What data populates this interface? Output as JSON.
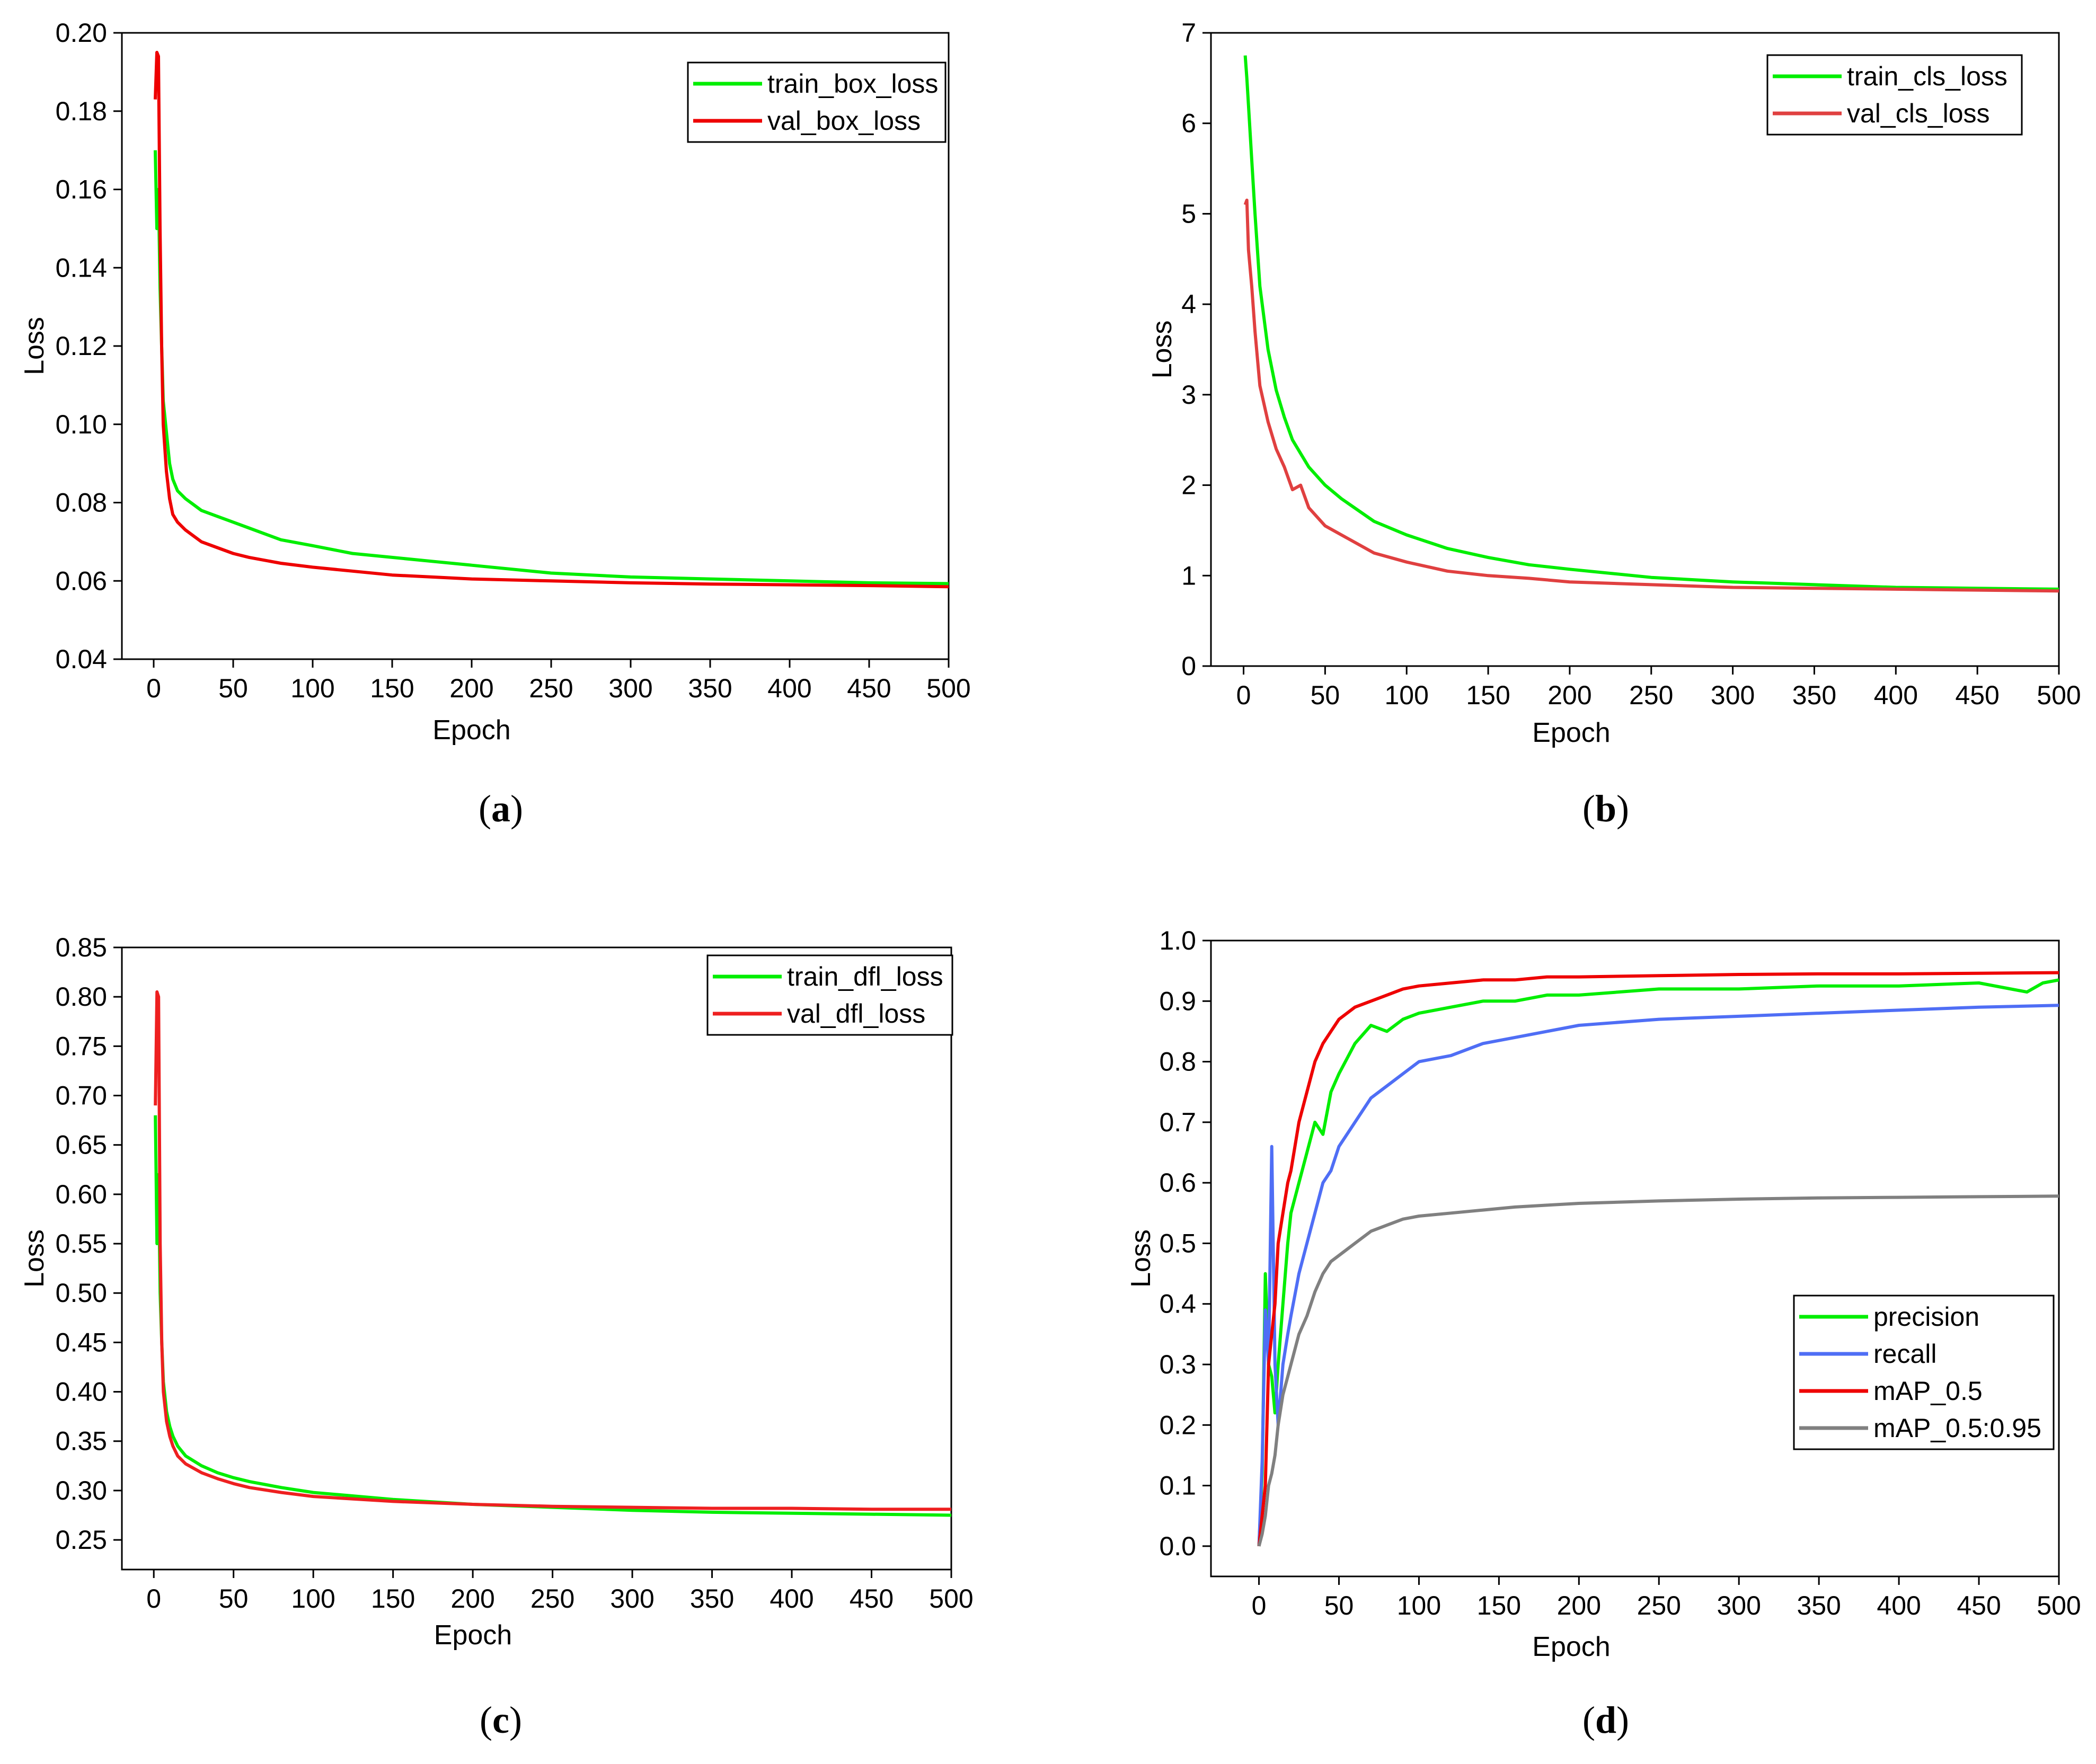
{
  "chart_data": [
    {
      "type": "line",
      "panel": "a",
      "caption_open": "(",
      "caption_letter": "a",
      "caption_close": ")",
      "xlabel": "Epoch",
      "ylabel": "Loss",
      "xlim": [
        -20,
        500
      ],
      "ylim": [
        0.04,
        0.2
      ],
      "xticks": [
        "0",
        "50",
        "100",
        "150",
        "200",
        "250",
        "300",
        "350",
        "400",
        "450",
        "500"
      ],
      "yticks": [
        "0.04",
        "0.06",
        "0.08",
        "0.10",
        "0.12",
        "0.14",
        "0.16",
        "0.18",
        "0.20"
      ],
      "legend_position": "top-right",
      "series": [
        {
          "name": "train_box_loss",
          "color": "#00ee00",
          "x": [
            1,
            2,
            3,
            4,
            5,
            6,
            8,
            10,
            12,
            15,
            20,
            25,
            30,
            40,
            50,
            60,
            80,
            100,
            125,
            150,
            175,
            200,
            250,
            300,
            350,
            400,
            450,
            500
          ],
          "y": [
            0.17,
            0.15,
            0.16,
            0.135,
            0.12,
            0.106,
            0.098,
            0.09,
            0.086,
            0.083,
            0.081,
            0.0795,
            0.078,
            0.0765,
            0.075,
            0.0735,
            0.0705,
            0.069,
            0.067,
            0.066,
            0.065,
            0.064,
            0.062,
            0.061,
            0.0605,
            0.06,
            0.0595,
            0.0593
          ]
        },
        {
          "name": "val_box_loss",
          "color": "#ee0000",
          "x": [
            1,
            2,
            3,
            4,
            5,
            6,
            8,
            10,
            12,
            15,
            20,
            25,
            30,
            40,
            50,
            60,
            80,
            100,
            125,
            150,
            175,
            200,
            250,
            300,
            350,
            400,
            450,
            500
          ],
          "y": [
            0.183,
            0.195,
            0.194,
            0.15,
            0.12,
            0.1,
            0.088,
            0.081,
            0.077,
            0.075,
            0.073,
            0.0715,
            0.07,
            0.0685,
            0.067,
            0.066,
            0.0645,
            0.0635,
            0.0625,
            0.0615,
            0.061,
            0.0605,
            0.06,
            0.0595,
            0.0592,
            0.059,
            0.0588,
            0.0585
          ]
        }
      ]
    },
    {
      "type": "line",
      "panel": "b",
      "caption_open": "(",
      "caption_letter": "b",
      "caption_close": ")",
      "xlabel": "Epoch",
      "ylabel": "Loss",
      "xlim": [
        -20,
        500
      ],
      "ylim": [
        0,
        7
      ],
      "xticks": [
        "0",
        "50",
        "100",
        "150",
        "200",
        "250",
        "300",
        "350",
        "400",
        "450",
        "500"
      ],
      "yticks": [
        "0",
        "1",
        "2",
        "3",
        "4",
        "5",
        "6",
        "7"
      ],
      "legend_position": "top-right",
      "series": [
        {
          "name": "train_cls_loss",
          "color": "#00ee00",
          "x": [
            1,
            2,
            3,
            5,
            7,
            10,
            15,
            20,
            25,
            30,
            40,
            50,
            60,
            80,
            100,
            125,
            150,
            175,
            200,
            250,
            300,
            350,
            400,
            450,
            500
          ],
          "y": [
            6.75,
            6.5,
            6.2,
            5.6,
            5.0,
            4.2,
            3.5,
            3.05,
            2.75,
            2.5,
            2.2,
            2.0,
            1.85,
            1.6,
            1.45,
            1.3,
            1.2,
            1.12,
            1.07,
            0.98,
            0.93,
            0.9,
            0.87,
            0.86,
            0.85
          ]
        },
        {
          "name": "val_cls_loss",
          "color": "#e04040",
          "x": [
            1,
            2,
            3,
            5,
            7,
            10,
            15,
            20,
            25,
            30,
            35,
            40,
            50,
            60,
            80,
            100,
            125,
            150,
            175,
            200,
            250,
            300,
            350,
            400,
            450,
            500
          ],
          "y": [
            5.1,
            5.15,
            4.6,
            4.2,
            3.7,
            3.1,
            2.7,
            2.4,
            2.2,
            1.95,
            2.0,
            1.75,
            1.55,
            1.45,
            1.25,
            1.15,
            1.05,
            1.0,
            0.97,
            0.93,
            0.9,
            0.87,
            0.86,
            0.85,
            0.84,
            0.83
          ]
        }
      ]
    },
    {
      "type": "line",
      "panel": "c",
      "caption_open": "(",
      "caption_letter": "c",
      "caption_close": ")",
      "xlabel": "Epoch",
      "ylabel": "Loss",
      "xlim": [
        -20,
        500
      ],
      "ylim": [
        0.22,
        0.85
      ],
      "xticks": [
        "0",
        "50",
        "100",
        "150",
        "200",
        "250",
        "300",
        "350",
        "400",
        "450",
        "500"
      ],
      "yticks": [
        "0.25",
        "0.30",
        "0.35",
        "0.40",
        "0.45",
        "0.50",
        "0.55",
        "0.60",
        "0.65",
        "0.70",
        "0.75",
        "0.80",
        "0.85"
      ],
      "legend_position": "top-right",
      "series": [
        {
          "name": "train_dfl_loss",
          "color": "#00ee00",
          "x": [
            1,
            2,
            3,
            4,
            5,
            6,
            8,
            10,
            12,
            15,
            20,
            30,
            40,
            50,
            60,
            80,
            100,
            150,
            200,
            250,
            300,
            350,
            400,
            450,
            500
          ],
          "y": [
            0.68,
            0.55,
            0.62,
            0.5,
            0.45,
            0.41,
            0.38,
            0.365,
            0.355,
            0.345,
            0.335,
            0.325,
            0.318,
            0.313,
            0.309,
            0.303,
            0.298,
            0.291,
            0.286,
            0.283,
            0.28,
            0.278,
            0.277,
            0.276,
            0.275
          ]
        },
        {
          "name": "val_dfl_loss",
          "color": "#ee2020",
          "x": [
            1,
            2,
            3,
            4,
            5,
            6,
            8,
            10,
            12,
            15,
            20,
            30,
            40,
            50,
            60,
            80,
            100,
            150,
            200,
            250,
            300,
            350,
            400,
            450,
            500
          ],
          "y": [
            0.69,
            0.805,
            0.8,
            0.55,
            0.45,
            0.4,
            0.37,
            0.355,
            0.345,
            0.335,
            0.327,
            0.318,
            0.312,
            0.307,
            0.303,
            0.298,
            0.294,
            0.289,
            0.286,
            0.284,
            0.283,
            0.282,
            0.282,
            0.281,
            0.281
          ]
        }
      ]
    },
    {
      "type": "line",
      "panel": "d",
      "caption_open": "(",
      "caption_letter": "d",
      "caption_close": ")",
      "xlabel": "Epoch",
      "ylabel": "Loss",
      "xlim": [
        -30,
        500
      ],
      "ylim": [
        -0.05,
        1.0
      ],
      "xticks": [
        "0",
        "50",
        "100",
        "150",
        "200",
        "250",
        "300",
        "350",
        "400",
        "450",
        "500"
      ],
      "yticks": [
        "0.0",
        "0.1",
        "0.2",
        "0.3",
        "0.4",
        "0.5",
        "0.6",
        "0.7",
        "0.8",
        "0.9",
        "1.0"
      ],
      "legend_position": "bottom-right",
      "series": [
        {
          "name": "precision",
          "color": "#00ee00",
          "x": [
            0,
            2,
            4,
            6,
            8,
            10,
            12,
            15,
            18,
            20,
            25,
            30,
            35,
            40,
            45,
            50,
            60,
            70,
            80,
            90,
            100,
            120,
            140,
            160,
            180,
            200,
            250,
            300,
            350,
            400,
            450,
            480,
            490,
            500
          ],
          "y": [
            0.0,
            0.12,
            0.45,
            0.3,
            0.28,
            0.22,
            0.3,
            0.4,
            0.5,
            0.55,
            0.6,
            0.65,
            0.7,
            0.68,
            0.75,
            0.78,
            0.83,
            0.86,
            0.85,
            0.87,
            0.88,
            0.89,
            0.9,
            0.9,
            0.91,
            0.91,
            0.92,
            0.92,
            0.925,
            0.925,
            0.93,
            0.915,
            0.93,
            0.935
          ]
        },
        {
          "name": "recall",
          "color": "#4f6ef5",
          "x": [
            0,
            2,
            4,
            6,
            8,
            10,
            12,
            15,
            18,
            20,
            25,
            30,
            35,
            40,
            45,
            50,
            60,
            70,
            80,
            90,
            100,
            120,
            140,
            160,
            180,
            200,
            250,
            300,
            350,
            400,
            450,
            500
          ],
          "y": [
            0.0,
            0.14,
            0.39,
            0.3,
            0.66,
            0.3,
            0.2,
            0.3,
            0.35,
            0.38,
            0.45,
            0.5,
            0.55,
            0.6,
            0.62,
            0.66,
            0.7,
            0.74,
            0.76,
            0.78,
            0.8,
            0.81,
            0.83,
            0.84,
            0.85,
            0.86,
            0.87,
            0.875,
            0.88,
            0.885,
            0.89,
            0.893
          ]
        },
        {
          "name": "mAP_0.5",
          "color": "#ee0000",
          "x": [
            0,
            2,
            4,
            6,
            8,
            10,
            12,
            15,
            18,
            20,
            25,
            30,
            35,
            40,
            45,
            50,
            60,
            70,
            80,
            90,
            100,
            120,
            140,
            160,
            180,
            200,
            250,
            300,
            350,
            400,
            450,
            500
          ],
          "y": [
            0.0,
            0.05,
            0.1,
            0.3,
            0.35,
            0.4,
            0.5,
            0.55,
            0.6,
            0.62,
            0.7,
            0.75,
            0.8,
            0.83,
            0.85,
            0.87,
            0.89,
            0.9,
            0.91,
            0.92,
            0.925,
            0.93,
            0.935,
            0.935,
            0.94,
            0.94,
            0.942,
            0.944,
            0.945,
            0.945,
            0.946,
            0.947
          ]
        },
        {
          "name": "mAP_0.5:0.95",
          "color": "#808080",
          "x": [
            0,
            2,
            4,
            6,
            8,
            10,
            12,
            15,
            18,
            20,
            25,
            30,
            35,
            40,
            45,
            50,
            60,
            70,
            80,
            90,
            100,
            120,
            140,
            160,
            180,
            200,
            250,
            300,
            350,
            400,
            450,
            500
          ],
          "y": [
            0.0,
            0.02,
            0.05,
            0.1,
            0.12,
            0.15,
            0.2,
            0.25,
            0.28,
            0.3,
            0.35,
            0.38,
            0.42,
            0.45,
            0.47,
            0.48,
            0.5,
            0.52,
            0.53,
            0.54,
            0.545,
            0.55,
            0.555,
            0.56,
            0.563,
            0.566,
            0.57,
            0.573,
            0.575,
            0.576,
            0.577,
            0.578
          ]
        }
      ]
    }
  ]
}
